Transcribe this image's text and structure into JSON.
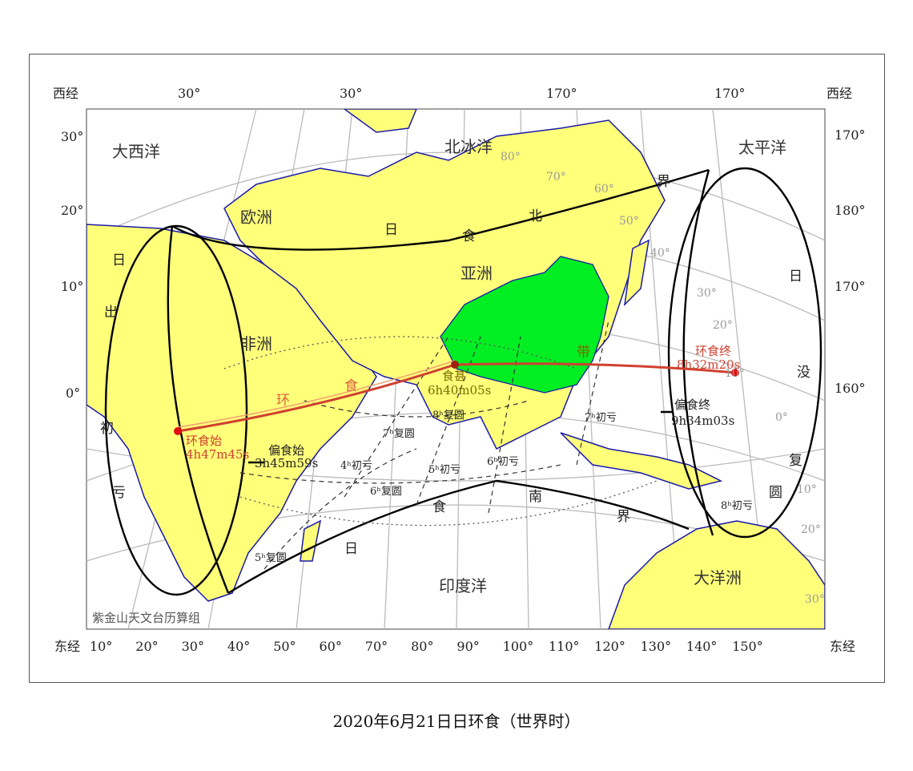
{
  "caption": "2020年6月21日日环食（世界时）",
  "colors": {
    "land": "#ffff7a",
    "china": "#00ee22",
    "ocean": "#ffffff",
    "coast": "#1a1aa8",
    "grid": "#bbbbbb",
    "path": "#d04030",
    "boundary": "#000000"
  },
  "top_axis": [
    "西经",
    "30°",
    "30°",
    "170°",
    "170°",
    "西经"
  ],
  "left_axis": [
    "30°",
    "20°",
    "10°",
    "0°"
  ],
  "right_axis": [
    "170°",
    "180°",
    "170°",
    "160°"
  ],
  "bottom_axis": [
    "东经",
    "10°",
    "20°",
    "30°",
    "40°",
    "50°",
    "60°",
    "70°",
    "80°",
    "90°",
    "100°",
    "110°",
    "120°",
    "130°",
    "140°",
    "150°",
    "东经"
  ],
  "regions": {
    "atlantic": "大西洋",
    "arctic": "北冰洋",
    "pacific": "太平洋",
    "europe": "欧洲",
    "asia": "亚洲",
    "africa": "非洲",
    "indian": "印度洋",
    "oceania": "大洋洲"
  },
  "credit": "紫金山天文台历算组",
  "events": {
    "annular_start": {
      "label": "环食始",
      "time": "4h47m45s"
    },
    "partial_start": {
      "label": "偏食始",
      "time": "3h45m59s"
    },
    "maximum": {
      "label": "食甚",
      "time": "6h40m05s"
    },
    "annular_end": {
      "label": "环食终",
      "time": "8h32m20s"
    },
    "partial_end": {
      "label": "偏食终",
      "time": "9h34m03s"
    }
  },
  "curve_labels": [
    "6ʰ复圆",
    "7ʰ复圆",
    "5ʰ复圆",
    "8ʰ复圆",
    "4ʰ初亏",
    "5ʰ初亏",
    "6ʰ初亏",
    "7ʰ初亏",
    "8ʰ初亏"
  ],
  "boundary_labels": {
    "north": [
      "日",
      "食",
      "北",
      "界"
    ],
    "south": [
      "日",
      "食",
      "南",
      "界"
    ],
    "path_text": [
      "环",
      "食",
      "带"
    ],
    "sunrise": [
      "日",
      "出",
      "初",
      "亏"
    ],
    "sunset": [
      "日",
      "没",
      "复",
      "圆"
    ]
  },
  "lat_labels": [
    "10°",
    "20°",
    "30°",
    "40°",
    "50°",
    "60°",
    "70°",
    "80°",
    "0°",
    "10°",
    "20°",
    "30°"
  ]
}
